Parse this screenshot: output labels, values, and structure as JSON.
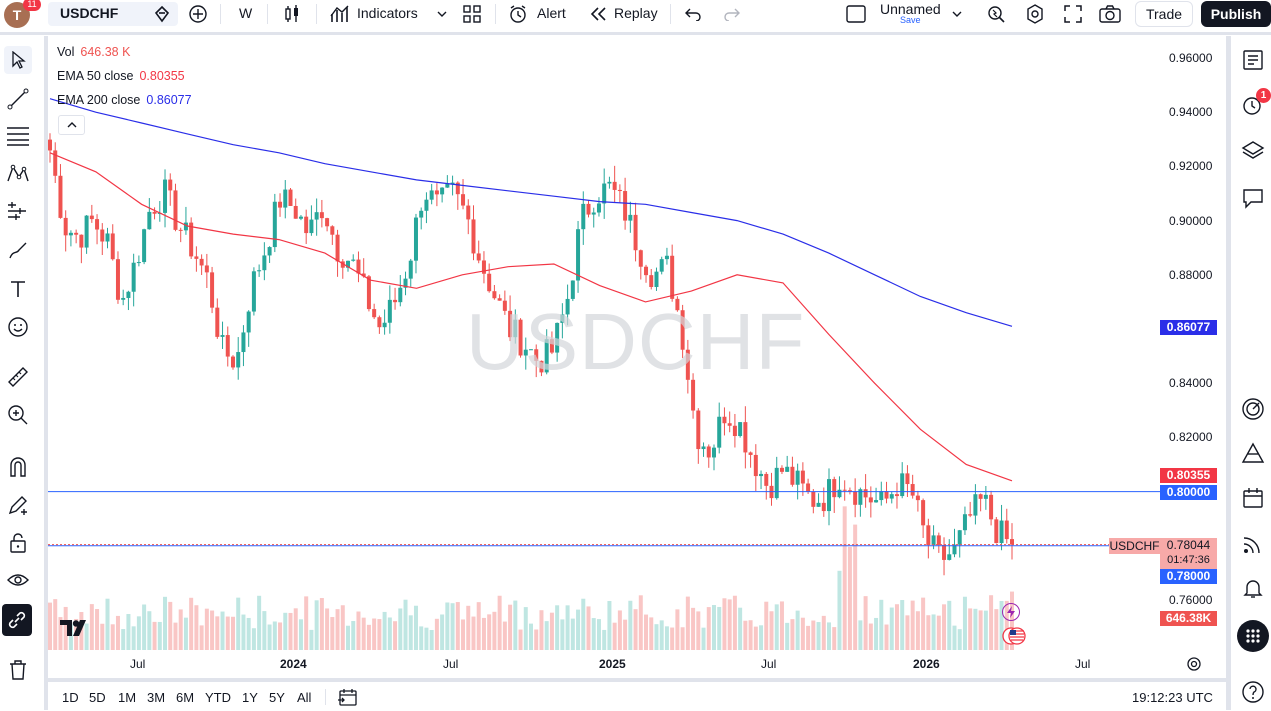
{
  "header": {
    "avatar_initial": "T",
    "notification_count": "11",
    "symbol": "USDCHF",
    "interval": "W",
    "indicators_label": "Indicators",
    "alert_label": "Alert",
    "replay_label": "Replay",
    "layout_name": "Unnamed",
    "save_label": "Save",
    "trade_label": "Trade",
    "publish_label": "Publish"
  },
  "legend": {
    "vol_label": "Vol",
    "vol_value": "646.38 K",
    "ema50_label": "EMA 50 close",
    "ema50_value": "0.80355",
    "ema200_label": "EMA 200 close",
    "ema200_value": "0.86077"
  },
  "watermark": "USDCHF",
  "price_axis": {
    "ticks": [
      "0.96000",
      "0.94000",
      "0.92000",
      "0.90000",
      "0.88000",
      "0.86000",
      "0.84000",
      "0.82000",
      "0.80000",
      "0.78000",
      "0.76000"
    ],
    "ema200_tag": "0.86077",
    "ema50_tag": "0.80355",
    "hline1_tag": "0.80000",
    "symbol_tag": "USDCHF",
    "last_price_tag": "0.78044",
    "countdown": "01:47:36",
    "hline2_tag": "0.78000",
    "volume_tag": "646.38K"
  },
  "time_axis": [
    "Jul",
    "2024",
    "Jul",
    "2025",
    "Jul",
    "2026",
    "Jul"
  ],
  "ranges": [
    "1D",
    "5D",
    "1M",
    "3M",
    "6M",
    "YTD",
    "1Y",
    "5Y",
    "All"
  ],
  "clock": "19:12:23 UTC",
  "right_panel": {
    "alerts_badge": "1"
  },
  "colors": {
    "up": "#26a69a",
    "down": "#ef5350",
    "ema50": "#f23645",
    "ema200": "#2a2ee8",
    "hline": "#2962ff",
    "publish_bg": "#131722"
  },
  "chart_data": {
    "type": "candlestick",
    "timeframe": "weekly",
    "symbol": "USDCHF",
    "ylim": [
      0.752,
      0.97
    ],
    "x_ticks": [
      "Jul 2023",
      "2024",
      "Jul 2024",
      "2025",
      "Jul 2025",
      "2026",
      "Jul 2026"
    ],
    "horizontal_lines": [
      0.8,
      0.78
    ],
    "last_close": 0.78044,
    "ema50_last": 0.80355,
    "ema200_last": 0.86077,
    "volume_last": "646.38K",
    "ema200": [
      0.945,
      0.94,
      0.936,
      0.932,
      0.928,
      0.925,
      0.921,
      0.918,
      0.915,
      0.913,
      0.911,
      0.909,
      0.907,
      0.906,
      0.903,
      0.9,
      0.895,
      0.888,
      0.88,
      0.872,
      0.866,
      0.861
    ],
    "ema50": [
      0.925,
      0.918,
      0.906,
      0.898,
      0.895,
      0.893,
      0.888,
      0.878,
      0.875,
      0.88,
      0.883,
      0.884,
      0.876,
      0.87,
      0.874,
      0.88,
      0.877,
      0.858,
      0.84,
      0.823,
      0.81,
      0.804
    ],
    "close_path": [
      0.926,
      0.898,
      0.894,
      0.9,
      0.892,
      0.87,
      0.885,
      0.905,
      0.91,
      0.898,
      0.889,
      0.878,
      0.852,
      0.848,
      0.875,
      0.89,
      0.908,
      0.905,
      0.895,
      0.906,
      0.89,
      0.885,
      0.872,
      0.86,
      0.87,
      0.885,
      0.912,
      0.905,
      0.91,
      0.902,
      0.885,
      0.872,
      0.86,
      0.855,
      0.848,
      0.852,
      0.87,
      0.9,
      0.91,
      0.912,
      0.904,
      0.89,
      0.88,
      0.883,
      0.86,
      0.822,
      0.815,
      0.83,
      0.825,
      0.812,
      0.802,
      0.808,
      0.803,
      0.797,
      0.798,
      0.806,
      0.801,
      0.798,
      0.795,
      0.803,
      0.8,
      0.782,
      0.775,
      0.778,
      0.79,
      0.797,
      0.785,
      0.78
    ]
  }
}
